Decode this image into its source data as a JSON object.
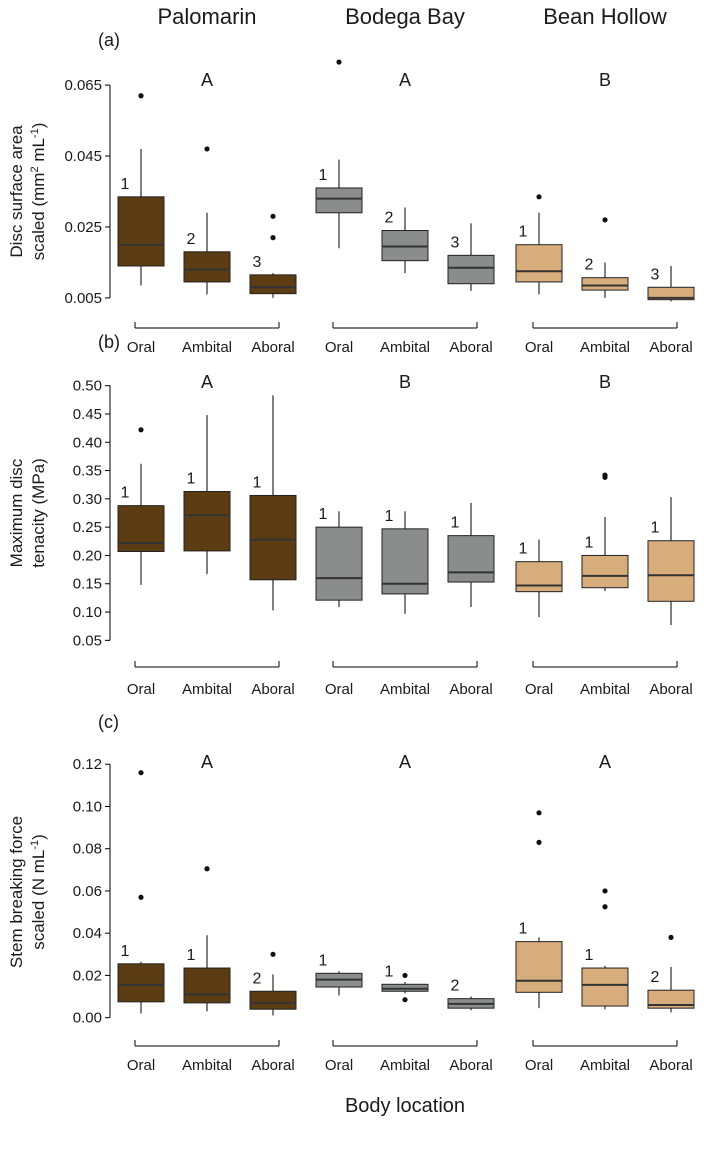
{
  "figure": {
    "site_titles": [
      "Palomarin",
      "Bodega Bay",
      "Bean Hollow"
    ],
    "xlabel": "Body location",
    "locations": [
      "Oral",
      "Ambital",
      "Aboral"
    ],
    "site_colors": [
      "#5c3c12",
      "#8a8d8c",
      "#d7ad7c"
    ],
    "median_color": "#333333"
  },
  "chart_data": [
    {
      "type": "box",
      "panel_label": "(a)",
      "ylabel_line1": "Disc surface area",
      "ylabel_line2": "scaled (mm",
      "ylabel_sup": "2",
      "ylabel_rest": " mL",
      "ylabel_sup2": "-1",
      "ylabel_close": ")",
      "ylim": [
        0.003,
        0.067
      ],
      "ticks": [
        "0.005",
        "0.025",
        "0.045",
        "0.065"
      ],
      "site_letters": [
        "A",
        "A",
        "B"
      ],
      "sites": [
        {
          "name": "Palomarin",
          "boxes": [
            {
              "location": "Oral",
              "whisker_low": 0.0085,
              "q1": 0.014,
              "median": 0.02,
              "q3": 0.0335,
              "whisker_high": 0.047,
              "outliers": [
                0.062
              ],
              "label": "1"
            },
            {
              "location": "Ambital",
              "whisker_low": 0.006,
              "q1": 0.0095,
              "median": 0.013,
              "q3": 0.018,
              "whisker_high": 0.029,
              "outliers": [
                0.047
              ],
              "label": "2"
            },
            {
              "location": "Aboral",
              "whisker_low": 0.005,
              "q1": 0.0062,
              "median": 0.008,
              "q3": 0.0115,
              "whisker_high": 0.012,
              "outliers": [
                0.022,
                0.028
              ],
              "label": "3"
            }
          ]
        },
        {
          "name": "Bodega Bay",
          "boxes": [
            {
              "location": "Oral",
              "whisker_low": 0.019,
              "q1": 0.029,
              "median": 0.033,
              "q3": 0.036,
              "whisker_high": 0.044,
              "outliers": [
                0.0715
              ],
              "label": "1"
            },
            {
              "location": "Ambital",
              "whisker_low": 0.012,
              "q1": 0.0155,
              "median": 0.0195,
              "q3": 0.024,
              "whisker_high": 0.0305,
              "outliers": [],
              "label": "2"
            },
            {
              "location": "Aboral",
              "whisker_low": 0.007,
              "q1": 0.009,
              "median": 0.0135,
              "q3": 0.017,
              "whisker_high": 0.026,
              "outliers": [],
              "label": "3"
            }
          ]
        },
        {
          "name": "Bean Hollow",
          "boxes": [
            {
              "location": "Oral",
              "whisker_low": 0.006,
              "q1": 0.0095,
              "median": 0.0125,
              "q3": 0.02,
              "whisker_high": 0.029,
              "outliers": [
                0.0335
              ],
              "label": "1"
            },
            {
              "location": "Ambital",
              "whisker_low": 0.005,
              "q1": 0.0072,
              "median": 0.0085,
              "q3": 0.0107,
              "whisker_high": 0.015,
              "outliers": [
                0.027
              ],
              "label": "2"
            },
            {
              "location": "Aboral",
              "whisker_low": 0.004,
              "q1": 0.0045,
              "median": 0.005,
              "q3": 0.008,
              "whisker_high": 0.014,
              "outliers": [],
              "label": "3"
            }
          ]
        }
      ]
    },
    {
      "type": "box",
      "panel_label": "(b)",
      "ylabel_line1": "Maximum disc",
      "ylabel_line2": "tenacity (MPa)",
      "ylim": [
        0.04,
        0.51
      ],
      "ticks": [
        "0.05",
        "0.10",
        "0.15",
        "0.20",
        "0.25",
        "0.30",
        "0.35",
        "0.40",
        "0.45",
        "0.50"
      ],
      "site_letters": [
        "A",
        "B",
        "B"
      ],
      "sites": [
        {
          "name": "Palomarin",
          "boxes": [
            {
              "location": "Oral",
              "whisker_low": 0.148,
              "q1": 0.207,
              "median": 0.222,
              "q3": 0.288,
              "whisker_high": 0.362,
              "outliers": [
                0.422
              ],
              "label": "1"
            },
            {
              "location": "Ambital",
              "whisker_low": 0.167,
              "q1": 0.208,
              "median": 0.271,
              "q3": 0.313,
              "whisker_high": 0.448,
              "outliers": [],
              "label": "1"
            },
            {
              "location": "Aboral",
              "whisker_low": 0.103,
              "q1": 0.157,
              "median": 0.228,
              "q3": 0.306,
              "whisker_high": 0.483,
              "outliers": [],
              "label": "1"
            }
          ]
        },
        {
          "name": "Bodega Bay",
          "boxes": [
            {
              "location": "Oral",
              "whisker_low": 0.109,
              "q1": 0.121,
              "median": 0.16,
              "q3": 0.25,
              "whisker_high": 0.278,
              "outliers": [],
              "label": "1"
            },
            {
              "location": "Ambital",
              "whisker_low": 0.097,
              "q1": 0.132,
              "median": 0.15,
              "q3": 0.247,
              "whisker_high": 0.278,
              "outliers": [],
              "label": "1"
            },
            {
              "location": "Aboral",
              "whisker_low": 0.109,
              "q1": 0.153,
              "median": 0.17,
              "q3": 0.235,
              "whisker_high": 0.293,
              "outliers": [],
              "label": "1"
            }
          ]
        },
        {
          "name": "Bean Hollow",
          "boxes": [
            {
              "location": "Oral",
              "whisker_low": 0.091,
              "q1": 0.136,
              "median": 0.147,
              "q3": 0.189,
              "whisker_high": 0.228,
              "outliers": [],
              "label": "1"
            },
            {
              "location": "Ambital",
              "whisker_low": 0.137,
              "q1": 0.143,
              "median": 0.164,
              "q3": 0.2,
              "whisker_high": 0.268,
              "outliers": [
                0.338,
                0.342
              ],
              "label": "1"
            },
            {
              "location": "Aboral",
              "whisker_low": 0.077,
              "q1": 0.119,
              "median": 0.165,
              "q3": 0.226,
              "whisker_high": 0.303,
              "outliers": [],
              "label": "1"
            }
          ]
        }
      ]
    },
    {
      "type": "box",
      "panel_label": "(c)",
      "ylabel_line1": "Stem breaking force",
      "ylabel_line2": "scaled (N mL",
      "ylabel_sup": "-1",
      "ylabel_close": ")",
      "ylim": [
        -0.003,
        0.122
      ],
      "ticks": [
        "0.00",
        "0.02",
        "0.04",
        "0.06",
        "0.08",
        "0.10",
        "0.12"
      ],
      "site_letters": [
        "A",
        "A",
        "A"
      ],
      "sites": [
        {
          "name": "Palomarin",
          "boxes": [
            {
              "location": "Oral",
              "whisker_low": 0.002,
              "q1": 0.0075,
              "median": 0.0155,
              "q3": 0.0255,
              "whisker_high": 0.0265,
              "outliers": [
                0.057,
                0.116
              ],
              "label": "1"
            },
            {
              "location": "Ambital",
              "whisker_low": 0.003,
              "q1": 0.007,
              "median": 0.011,
              "q3": 0.0235,
              "whisker_high": 0.039,
              "outliers": [
                0.0705
              ],
              "label": "1"
            },
            {
              "location": "Aboral",
              "whisker_low": 0.001,
              "q1": 0.004,
              "median": 0.007,
              "q3": 0.0125,
              "whisker_high": 0.0205,
              "outliers": [
                0.03
              ],
              "label": "2"
            }
          ]
        },
        {
          "name": "Bodega Bay",
          "boxes": [
            {
              "location": "Oral",
              "whisker_low": 0.0105,
              "q1": 0.0145,
              "median": 0.018,
              "q3": 0.021,
              "whisker_high": 0.022,
              "outliers": [],
              "label": "1"
            },
            {
              "location": "Ambital",
              "whisker_low": 0.0115,
              "q1": 0.0125,
              "median": 0.0137,
              "q3": 0.0158,
              "whisker_high": 0.0168,
              "outliers": [
                0.0085,
                0.02
              ],
              "label": "1"
            },
            {
              "location": "Aboral",
              "whisker_low": 0.0035,
              "q1": 0.0045,
              "median": 0.0065,
              "q3": 0.009,
              "whisker_high": 0.01,
              "outliers": [],
              "label": "2"
            }
          ]
        },
        {
          "name": "Bean Hollow",
          "boxes": [
            {
              "location": "Oral",
              "whisker_low": 0.0045,
              "q1": 0.012,
              "median": 0.0175,
              "q3": 0.036,
              "whisker_high": 0.038,
              "outliers": [
                0.083,
                0.097
              ],
              "label": "1"
            },
            {
              "location": "Ambital",
              "whisker_low": 0.004,
              "q1": 0.0055,
              "median": 0.0155,
              "q3": 0.0235,
              "whisker_high": 0.0245,
              "outliers": [
                0.0525,
                0.06
              ],
              "label": "1"
            },
            {
              "location": "Aboral",
              "whisker_low": 0.0025,
              "q1": 0.0045,
              "median": 0.006,
              "q3": 0.013,
              "whisker_high": 0.024,
              "outliers": [
                0.038
              ],
              "label": "2"
            }
          ]
        }
      ]
    }
  ]
}
